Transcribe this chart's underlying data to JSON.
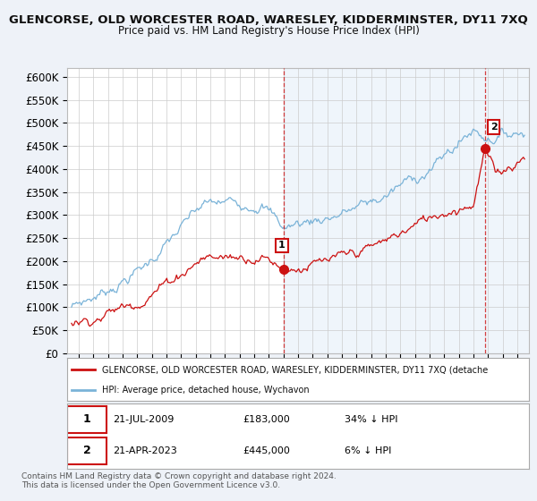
{
  "title": "GLENCORSE, OLD WORCESTER ROAD, WARESLEY, KIDDERMINSTER, DY11 7XQ",
  "subtitle": "Price paid vs. HM Land Registry's House Price Index (HPI)",
  "ylim": [
    0,
    620000
  ],
  "yticks": [
    0,
    50000,
    100000,
    150000,
    200000,
    250000,
    300000,
    350000,
    400000,
    450000,
    500000,
    550000,
    600000
  ],
  "hpi_color": "#7ab3d8",
  "price_color": "#cc1111",
  "t1": 2009.54,
  "t2": 2023.29,
  "price_at_t1": 183000,
  "price_at_t2": 445000,
  "legend_label1": "GLENCORSE, OLD WORCESTER ROAD, WARESLEY, KIDDERMINSTER, DY11 7XQ (detache",
  "legend_label2": "HPI: Average price, detached house, Wychavon",
  "row1_date": "21-JUL-2009",
  "row1_price": "£183,000",
  "row1_pct": "34% ↓ HPI",
  "row2_date": "21-APR-2023",
  "row2_price": "£445,000",
  "row2_pct": "6% ↓ HPI",
  "footnote1": "Contains HM Land Registry data © Crown copyright and database right 2024.",
  "footnote2": "This data is licensed under the Open Government Licence v3.0.",
  "bg_color": "#eef2f8",
  "plot_bg": "#ffffff",
  "shaded_bg": "#ddeeff"
}
